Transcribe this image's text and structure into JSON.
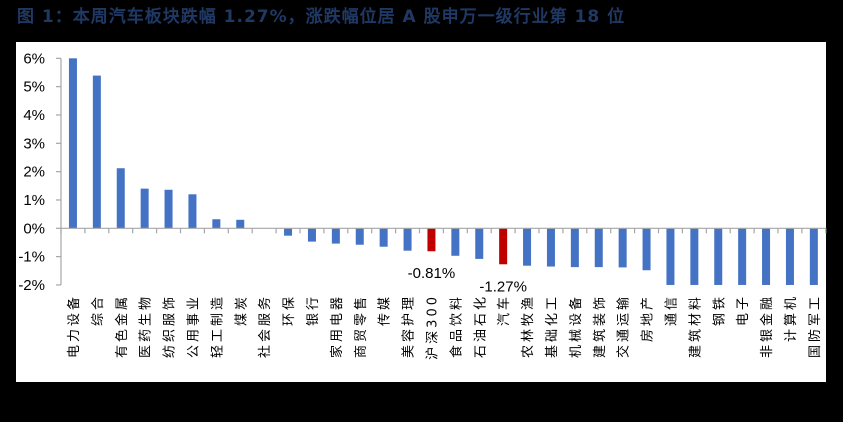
{
  "title": "图 1：本周汽车板块跌幅 1.27%，涨跌幅位居 A 股申万一级行业第 18 位",
  "colors": {
    "background": "#000000",
    "panel": "#ffffff",
    "title": "#1f3864",
    "bar_default": "#4472c4",
    "bar_highlight": "#c00000",
    "axis": "#a6a6a6"
  },
  "chart_data": {
    "type": "bar",
    "title": "本周汽车板块跌幅 1.27%，涨跌幅位居 A 股申万一级行业第 18 位",
    "xlabel": "",
    "ylabel": "",
    "ylim": [
      -0.02,
      0.06
    ],
    "yticks": [
      "6%",
      "5%",
      "4%",
      "3%",
      "2%",
      "1%",
      "0%",
      "-1%",
      "-2%"
    ],
    "grid": false,
    "legend": null,
    "categories": [
      "电力设备",
      "综合",
      "有色金属",
      "医药生物",
      "纺织服饰",
      "公用事业",
      "轻工制造",
      "煤炭",
      "社会服务",
      "环保",
      "银行",
      "家用电器",
      "商贸零售",
      "传媒",
      "美容护理",
      "沪深300",
      "食品饮料",
      "石油石化",
      "汽车",
      "农林牧渔",
      "基础化工",
      "机械设备",
      "建筑装饰",
      "交通运输",
      "房地产",
      "通信",
      "建筑材料",
      "钢铁",
      "电子",
      "非银金融",
      "计算机",
      "国防军工"
    ],
    "values": [
      6.0,
      5.39,
      2.12,
      1.4,
      1.36,
      1.2,
      0.32,
      0.3,
      0.0,
      -0.26,
      -0.47,
      -0.54,
      -0.58,
      -0.65,
      -0.79,
      -0.81,
      -0.97,
      -1.08,
      -1.27,
      -1.32,
      -1.35,
      -1.37,
      -1.37,
      -1.38,
      -1.48,
      -2.0,
      -2.0,
      -2.0,
      -2.0,
      -2.0,
      -2.0,
      -2.0
    ],
    "value_unit": "%",
    "highlighted": [
      "沪深300",
      "汽车"
    ],
    "annotations": [
      {
        "category": "沪深300",
        "text": "-0.81%"
      },
      {
        "category": "汽车",
        "text": "-1.27%"
      }
    ],
    "notes": "Bars for 通信 through 国防军工 are clipped at the -2% axis minimum."
  }
}
